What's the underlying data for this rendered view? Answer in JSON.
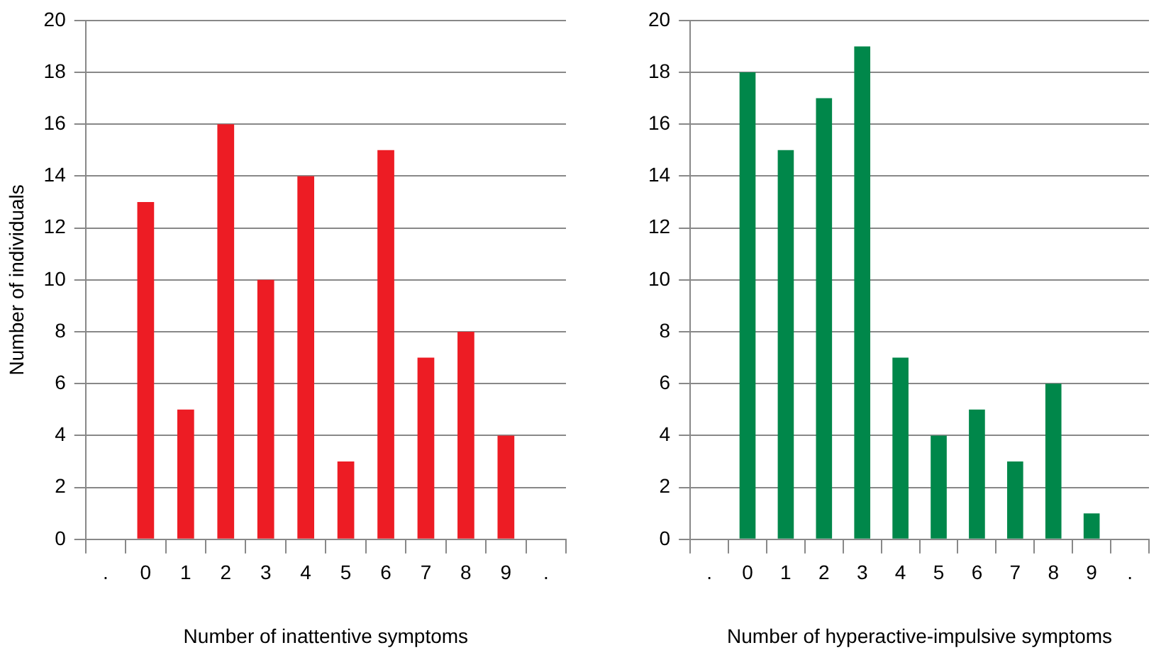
{
  "chart_data": [
    {
      "type": "bar",
      "ylabel": "Number of individuals",
      "xlabel": "Number of inattentive symptoms",
      "categories": [
        ".",
        "0",
        "1",
        "2",
        "3",
        "4",
        "5",
        "6",
        "7",
        "8",
        "9",
        "."
      ],
      "series": [
        {
          "color": "#ed1c24",
          "values": [
            null,
            13,
            5,
            16,
            10,
            14,
            3,
            15,
            7,
            8,
            4,
            null
          ]
        }
      ],
      "ylim": [
        0,
        20
      ],
      "yticks": [
        0,
        2,
        4,
        6,
        8,
        10,
        12,
        14,
        16,
        18,
        20
      ],
      "grid": "y",
      "legend": false
    },
    {
      "type": "bar",
      "xlabel": "Number of hyperactive-impulsive symptoms",
      "categories": [
        ".",
        "0",
        "1",
        "2",
        "3",
        "4",
        "5",
        "6",
        "7",
        "8",
        "9",
        "."
      ],
      "series": [
        {
          "color": "#00874a",
          "values": [
            null,
            18,
            15,
            17,
            19,
            7,
            4,
            5,
            3,
            6,
            1,
            null
          ]
        }
      ],
      "ylim": [
        0,
        20
      ],
      "yticks": [
        0,
        2,
        4,
        6,
        8,
        10,
        12,
        14,
        16,
        18,
        20
      ],
      "grid": "y",
      "legend": false
    }
  ]
}
